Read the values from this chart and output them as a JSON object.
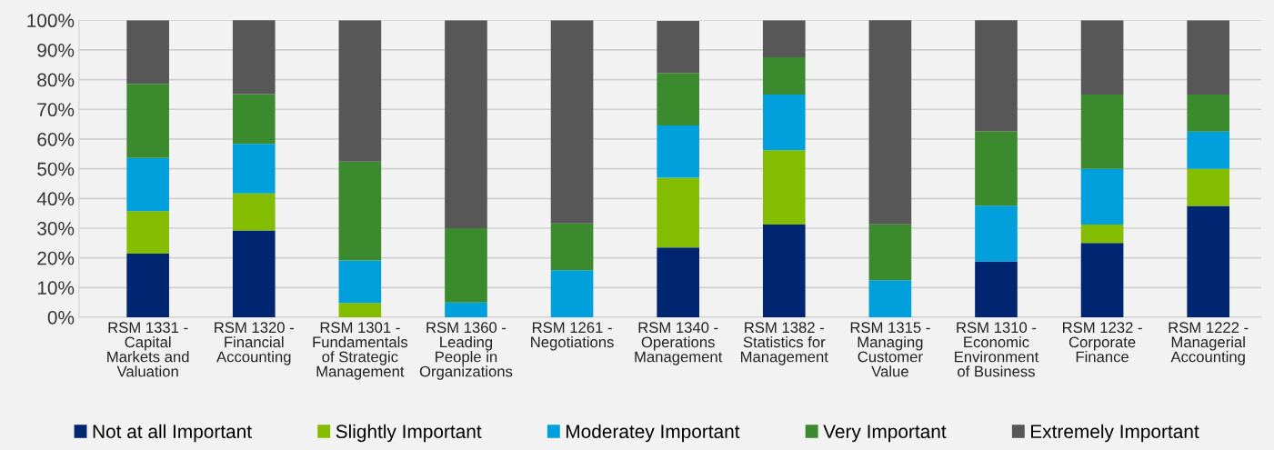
{
  "chart_data": {
    "type": "bar",
    "stacked": true,
    "categories": [
      "RSM 1331 -\nCapital\nMarkets and\nValuation",
      "RSM 1320 -\nFinancial\nAccounting",
      "RSM 1301 -\nFundamentals\nof Strategic\nManagement",
      "RSM 1360 -\nLeading\nPeople in\nOrganizations",
      "RSM 1261 -\nNegotiations",
      "RSM 1340 -\nOperations\nManagement",
      "RSM 1382 -\nStatistics for\nManagement",
      "RSM 1315 -\nManaging\nCustomer\nValue",
      "RSM 1310 -\nEconomic\nEnvironment\nof Business",
      "RSM 1232 -\nCorporate\nFinance",
      "RSM 1222 -\nManagerial\nAccounting"
    ],
    "series": [
      {
        "name": "Not at all Important",
        "color": "#002672",
        "values": [
          21.4,
          29.2,
          0,
          0,
          0,
          23.5,
          31.2,
          0,
          18.8,
          25,
          37.5
        ]
      },
      {
        "name": "Slightly Important",
        "color": "#84bd00",
        "values": [
          14.3,
          12.5,
          4.8,
          0,
          0,
          23.5,
          25,
          0,
          0,
          6.2,
          12.5
        ]
      },
      {
        "name": "Moderatey Important",
        "color": "#00a0dc",
        "values": [
          17.9,
          16.7,
          14.3,
          5,
          15.8,
          17.6,
          18.8,
          12.5,
          18.8,
          18.8,
          12.5
        ]
      },
      {
        "name": "Very Important",
        "color": "#3c8a2e",
        "values": [
          25,
          16.7,
          33.3,
          25,
          15.8,
          17.6,
          12.5,
          18.8,
          25,
          25,
          12.5
        ]
      },
      {
        "name": "Extremely Important",
        "color": "#575757",
        "values": [
          21.4,
          25,
          47.6,
          70,
          68.4,
          17.6,
          12.5,
          68.8,
          37.5,
          25,
          25
        ]
      }
    ],
    "ylim": [
      0,
      100
    ],
    "yticks": [
      {
        "value": 0,
        "label": "0%"
      },
      {
        "value": 10,
        "label": "10%"
      },
      {
        "value": 20,
        "label": "20%"
      },
      {
        "value": 30,
        "label": "30%"
      },
      {
        "value": 40,
        "label": "40%"
      },
      {
        "value": 50,
        "label": "50%"
      },
      {
        "value": 60,
        "label": "60%"
      },
      {
        "value": 70,
        "label": "70%"
      },
      {
        "value": 80,
        "label": "80%"
      },
      {
        "value": 90,
        "label": "90%"
      },
      {
        "value": 100,
        "label": "100%"
      }
    ],
    "grid": "y",
    "legend": "bottom"
  }
}
